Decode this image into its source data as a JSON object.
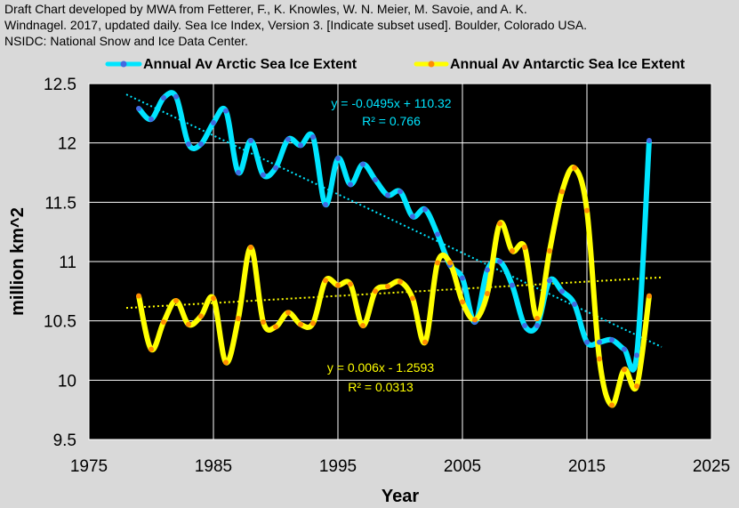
{
  "header": {
    "line1": "Draft Chart developed by MWA from Fetterer, F., K. Knowles, W. N. Meier, M. Savoie, and A. K.",
    "line2": "Windnagel. 2017, updated daily. Sea Ice Index, Version 3. [Indicate subset used]. Boulder, Colorado USA.",
    "line3": "NSIDC: National Snow and Ice Data Center."
  },
  "chart_data": {
    "type": "line",
    "xlabel": "Year",
    "ylabel": "million km^2",
    "xlim": [
      1975,
      2025
    ],
    "ylim": [
      9.5,
      12.5
    ],
    "xticks": [
      "1975",
      "1985",
      "1995",
      "2005",
      "2015",
      "2025"
    ],
    "yticks": [
      "9.5",
      "10",
      "10.5",
      "11",
      "11.5",
      "12",
      "12.5"
    ],
    "grid": "horizontal and vertical major gridlines",
    "legend_position": "top",
    "plot_background": "#000000",
    "series": [
      {
        "name": "Annual Av Arctic Sea Ice Extent",
        "color": "#00e5ff",
        "marker_color": "#4169e1",
        "x": [
          1979,
          1980,
          1981,
          1982,
          1983,
          1984,
          1985,
          1986,
          1987,
          1988,
          1989,
          1990,
          1991,
          1992,
          1993,
          1994,
          1995,
          1996,
          1997,
          1998,
          1999,
          2000,
          2001,
          2002,
          2003,
          2004,
          2005,
          2006,
          2007,
          2008,
          2009,
          2010,
          2011,
          2012,
          2013,
          2014,
          2015,
          2016,
          2017,
          2018,
          2019,
          2020
        ],
        "y": [
          12.29,
          12.2,
          12.38,
          12.39,
          11.99,
          11.99,
          12.17,
          12.27,
          11.75,
          12.02,
          11.73,
          11.79,
          12.03,
          11.98,
          12.05,
          11.48,
          11.87,
          11.65,
          11.82,
          11.69,
          11.56,
          11.59,
          11.38,
          11.44,
          11.23,
          10.97,
          10.86,
          10.49,
          10.93,
          11.0,
          10.8,
          10.46,
          10.46,
          10.84,
          10.75,
          10.64,
          10.32,
          10.32,
          10.34,
          10.26,
          10.21,
          12.02
        ]
      },
      {
        "name": "Annual Av Antarctic Sea Ice Extent",
        "color": "#ffff00",
        "marker_color": "#ff8c00",
        "x": [
          1979,
          1980,
          1981,
          1982,
          1983,
          1984,
          1985,
          1986,
          1987,
          1988,
          1989,
          1990,
          1991,
          1992,
          1993,
          1994,
          1995,
          1996,
          1997,
          1998,
          1999,
          2000,
          2001,
          2002,
          2003,
          2004,
          2005,
          2006,
          2007,
          2008,
          2009,
          2010,
          2011,
          2012,
          2013,
          2014,
          2015,
          2016,
          2017,
          2018,
          2019,
          2020
        ],
        "y": [
          10.71,
          10.26,
          10.49,
          10.67,
          10.47,
          10.54,
          10.69,
          10.15,
          10.52,
          11.12,
          10.49,
          10.45,
          10.57,
          10.47,
          10.48,
          10.84,
          10.8,
          10.81,
          10.46,
          10.75,
          10.79,
          10.83,
          10.69,
          10.32,
          10.99,
          10.99,
          10.66,
          10.51,
          10.73,
          11.32,
          11.09,
          11.12,
          10.52,
          11.09,
          11.59,
          11.79,
          11.43,
          10.18,
          9.79,
          10.09,
          9.95,
          10.71
        ]
      }
    ],
    "trendlines": [
      {
        "series": "Annual Av Arctic Sea Ice Extent",
        "slope": -0.0495,
        "intercept": 110.32,
        "x_range": [
          1978,
          2021
        ],
        "color": "#00e5ff",
        "equation": "y = -0.0495x + 110.32",
        "r2": "R² = 0.766"
      },
      {
        "series": "Annual Av Antarctic Sea Ice Extent",
        "slope": 0.006,
        "intercept": -1.2593,
        "x_range": [
          1978,
          2021
        ],
        "color": "#ffff00",
        "equation": "y = 0.006x - 1.2593",
        "r2": "R² = 0.0313"
      }
    ]
  }
}
